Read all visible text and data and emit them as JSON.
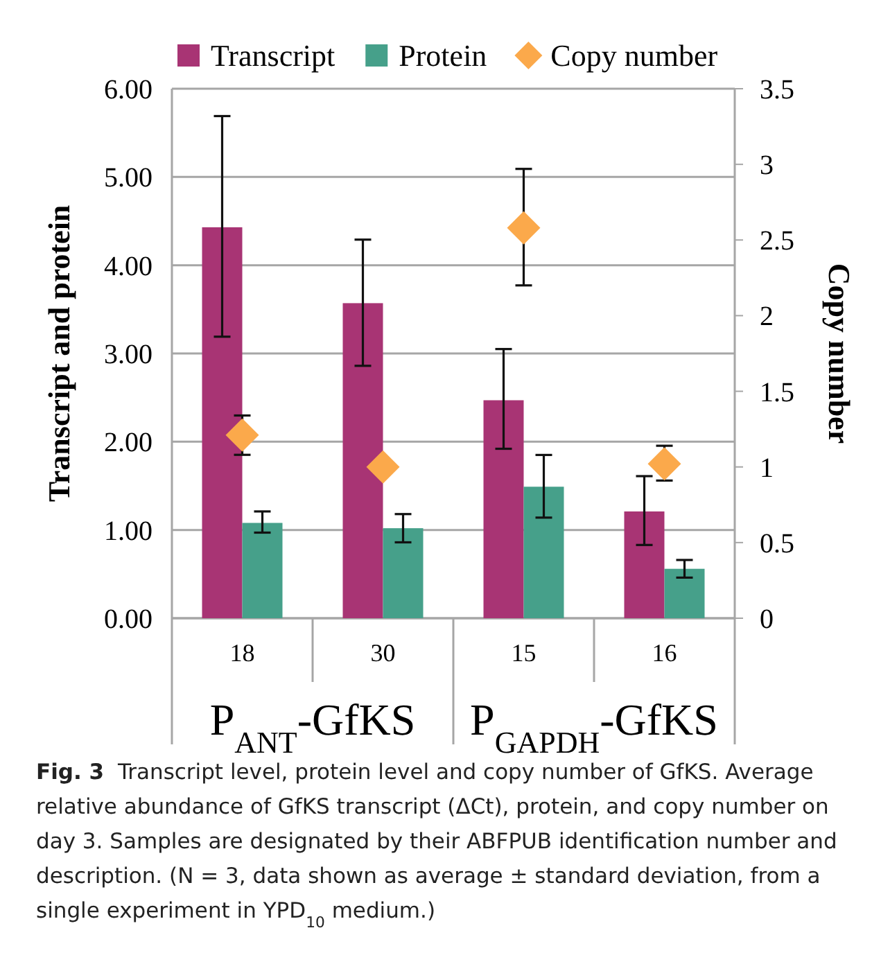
{
  "chart_data": {
    "type": "bar",
    "categories": [
      "18",
      "30",
      "15",
      "16"
    ],
    "ylabel": "Transcript and protein",
    "y2label": "Copy number",
    "ylim": [
      0,
      6
    ],
    "yticks": [
      {
        "value": 0,
        "label": "0.00"
      },
      {
        "value": 1,
        "label": "1.00"
      },
      {
        "value": 2,
        "label": "2.00"
      },
      {
        "value": 3,
        "label": "3.00"
      },
      {
        "value": 4,
        "label": "4.00"
      },
      {
        "value": 5,
        "label": "5.00"
      },
      {
        "value": 6,
        "label": "6.00"
      }
    ],
    "y2lim": [
      0,
      3.5
    ],
    "y2ticks": [
      0,
      0.5,
      1,
      1.5,
      2,
      2.5,
      3,
      3.5
    ],
    "grid": "y",
    "legend": "top",
    "series": [
      {
        "name": "Transcript",
        "color": "#a83474",
        "values": [
          4.43,
          3.57,
          2.47,
          1.21
        ],
        "errors": [
          [
            3.19,
            5.69
          ],
          [
            2.86,
            4.29
          ],
          [
            1.92,
            3.05
          ],
          [
            0.83,
            1.61
          ]
        ]
      },
      {
        "name": "Protein",
        "color": "#46a08a",
        "values": [
          1.08,
          1.02,
          1.49,
          0.56
        ],
        "errors": [
          [
            0.97,
            1.21
          ],
          [
            0.86,
            1.18
          ],
          [
            1.14,
            1.85
          ],
          [
            0.46,
            0.66
          ]
        ]
      },
      {
        "name": "Copy number",
        "type": "scatter",
        "axis": "y2",
        "marker": "diamond",
        "color": "#fba94b",
        "values": [
          1.21,
          1.0,
          2.58,
          1.02
        ],
        "errors": [
          [
            1.08,
            1.34
          ],
          null,
          [
            2.2,
            2.97
          ],
          [
            0.91,
            1.14
          ]
        ]
      }
    ],
    "annotations": [
      "P$_{ANT}$-GfKS",
      "P$_{GAPDH}$-GfKS",
      "Fig. 3  Transcript level, protein level and copy number of GfKS. Average relative abundance of GfKS transcript (ΔCt), protein, and copy number on day 3. Samples are designated by their ABFPUB identification number and description. (N = 3, data shown as average ± standard deviation, from a single experiment in YPD$_{10}$ medium.)"
    ]
  }
}
